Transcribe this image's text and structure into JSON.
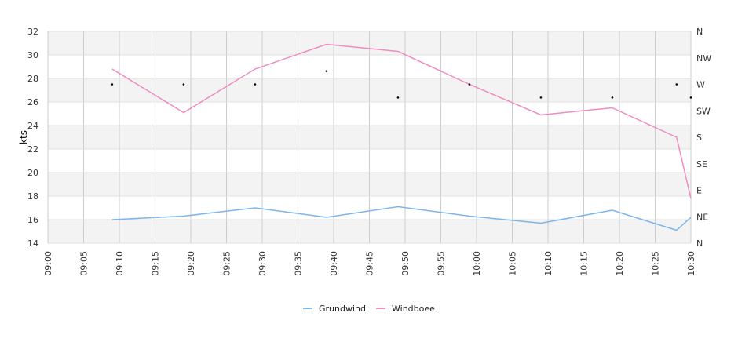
{
  "chart_data": {
    "type": "line",
    "ylabel": "kts",
    "ylim": [
      14,
      32
    ],
    "yticks": [
      14,
      16,
      18,
      20,
      22,
      24,
      26,
      28,
      30,
      32
    ],
    "x_range": [
      "09:00",
      "10:30"
    ],
    "xticks": [
      "09:00",
      "09:05",
      "09:10",
      "09:15",
      "09:20",
      "09:25",
      "09:30",
      "09:35",
      "09:40",
      "09:45",
      "09:50",
      "09:55",
      "10:00",
      "10:05",
      "10:10",
      "10:15",
      "10:20",
      "10:25",
      "10:30"
    ],
    "grid": true,
    "legend_position": "bottom",
    "direction_axis": {
      "side": "right",
      "labels": [
        "N",
        "NE",
        "E",
        "SE",
        "S",
        "SW",
        "W",
        "NW",
        "N"
      ]
    },
    "series": [
      {
        "name": "Grundwind",
        "color": "#7cb5ec",
        "x": [
          "09:09",
          "09:19",
          "09:29",
          "09:39",
          "09:49",
          "09:59",
          "10:09",
          "10:19",
          "10:28",
          "10:30"
        ],
        "values": [
          16.0,
          16.3,
          17.0,
          16.2,
          17.1,
          16.3,
          15.7,
          16.8,
          15.1,
          16.2
        ]
      },
      {
        "name": "Windboee",
        "color": "#f08cc0",
        "x": [
          "09:09",
          "09:19",
          "09:29",
          "09:39",
          "09:49",
          "09:59",
          "10:09",
          "10:19",
          "10:28",
          "10:30"
        ],
        "values": [
          28.8,
          25.1,
          28.8,
          30.9,
          30.3,
          27.5,
          24.9,
          25.5,
          23.0,
          17.8
        ]
      }
    ],
    "direction_markers": {
      "x": [
        "09:09",
        "09:19",
        "09:29",
        "09:39",
        "09:49",
        "09:59",
        "10:09",
        "10:19",
        "10:28",
        "10:30"
      ],
      "values": [
        "W",
        "W",
        "W",
        "WNW",
        "WSW",
        "W",
        "WSW",
        "WSW",
        "W",
        "WSW"
      ]
    }
  }
}
